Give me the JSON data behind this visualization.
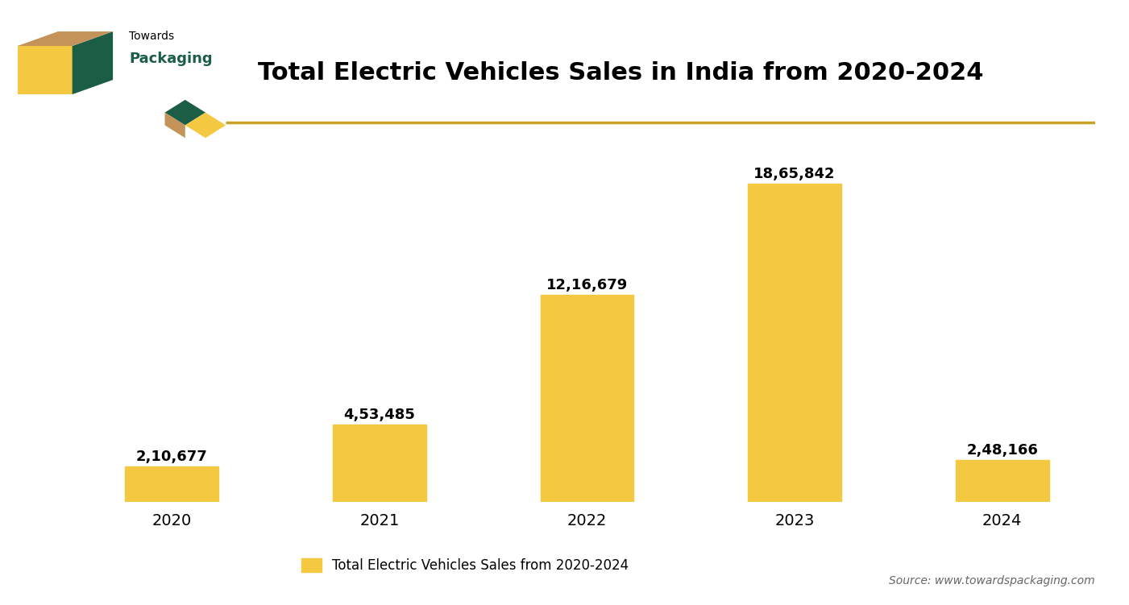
{
  "title": "Total Electric Vehicles Sales in India from 2020-2024",
  "categories": [
    "2020",
    "2021",
    "2022",
    "2023",
    "2024"
  ],
  "values": [
    210677,
    453485,
    1216679,
    1865842,
    248166
  ],
  "bar_color": "#F5C842",
  "bar_edge_color": "#F5C842",
  "value_labels": [
    "2,10,677",
    "4,53,485",
    "12,16,679",
    "18,65,842",
    "2,48,166"
  ],
  "legend_label": "Total Electric Vehicles Sales from 2020-2024",
  "source_text": "Source: www.towardspackaging.com",
  "background_color": "#FFFFFF",
  "grid_color": "#CCCCCC",
  "title_fontsize": 22,
  "label_fontsize": 13,
  "tick_fontsize": 14,
  "ylim": [
    0,
    2200000
  ],
  "dark_green": "#1B5E45",
  "gold": "#C9A227",
  "tan_color": "#C4935A",
  "yellow": "#F5C842"
}
